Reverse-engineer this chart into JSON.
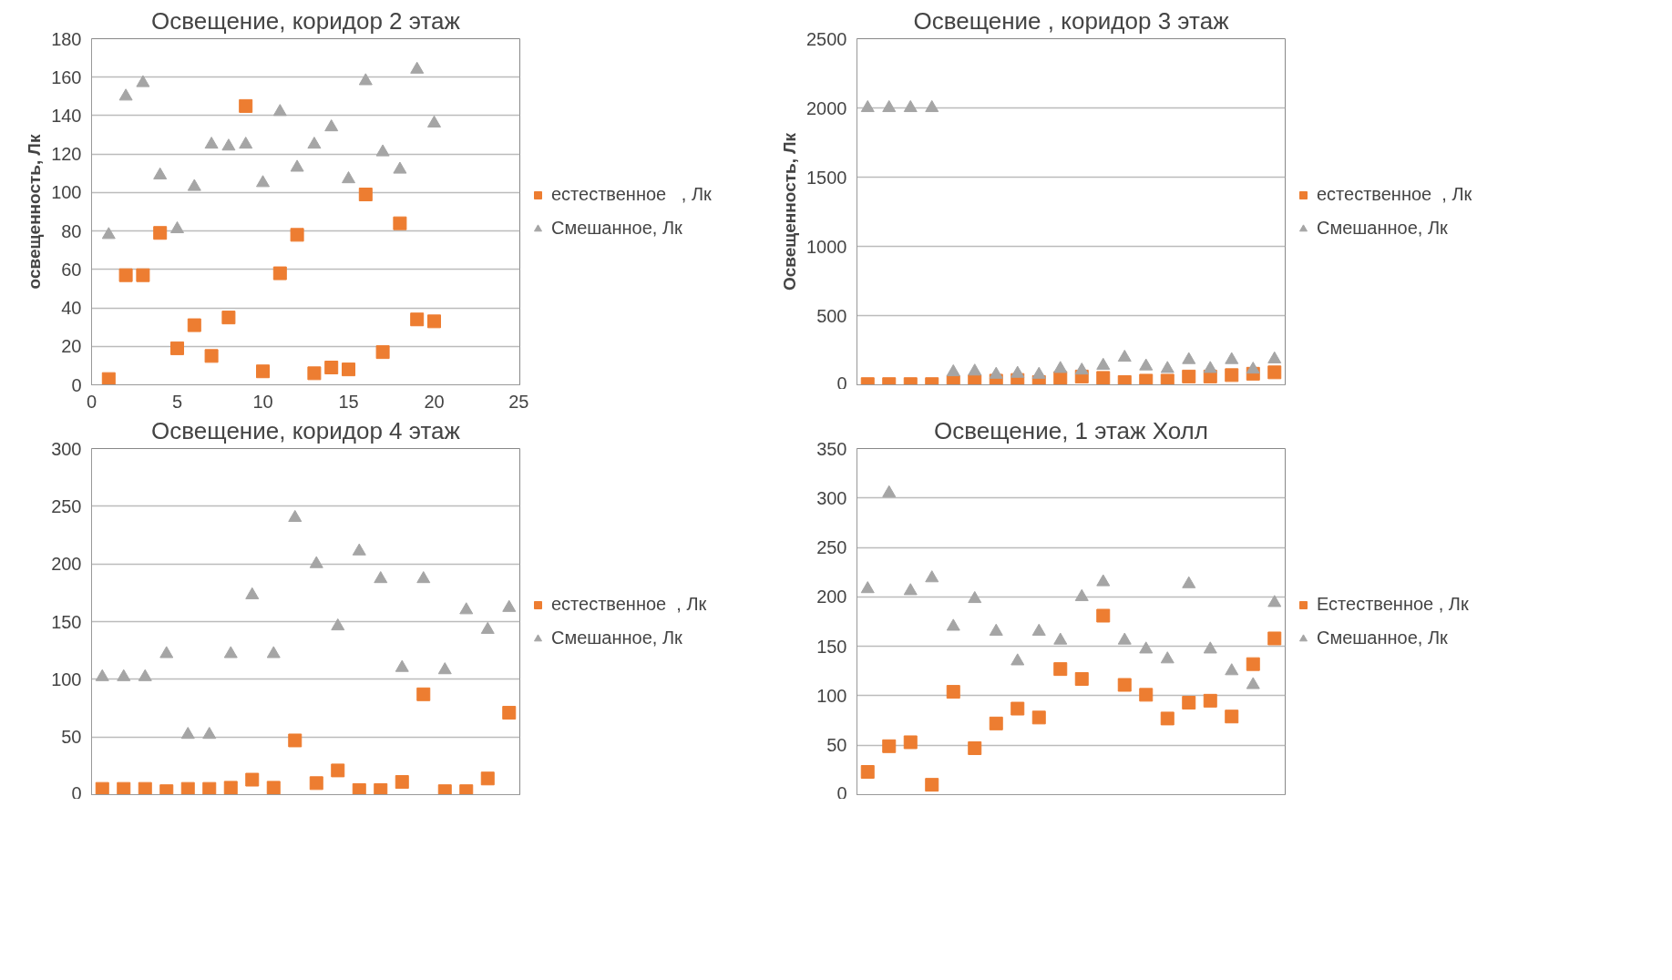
{
  "chart_data": [
    {
      "type": "scatter",
      "title": "Освещение, коридор 2 этаж",
      "ylabel": "освещенность, Лк",
      "x": [
        1,
        2,
        3,
        4,
        5,
        6,
        7,
        8,
        9,
        10,
        11,
        12,
        13,
        14,
        15,
        16,
        17,
        18,
        19,
        20
      ],
      "xlim": [
        0,
        25
      ],
      "xticks": [
        0,
        5,
        10,
        15,
        20,
        25
      ],
      "ylim": [
        0,
        180
      ],
      "yticks": [
        0,
        20,
        40,
        60,
        80,
        100,
        120,
        140,
        160,
        180
      ],
      "grid": "y",
      "legend": "right",
      "series": [
        {
          "name": "естественное   , Лк",
          "color": "#ed7d31",
          "marker": "square",
          "values": [
            3,
            57,
            57,
            79,
            19,
            31,
            15,
            35,
            145,
            7,
            58,
            78,
            6,
            9,
            8,
            99,
            17,
            84,
            34,
            33
          ]
        },
        {
          "name": "Смешанное, Лк",
          "color": "#a5a5a5",
          "marker": "triangle",
          "values": [
            78,
            150,
            157,
            109,
            81,
            103,
            125,
            124,
            125,
            105,
            142,
            113,
            125,
            134,
            107,
            158,
            121,
            112,
            164,
            136
          ]
        }
      ]
    },
    {
      "type": "scatter",
      "title": "Освещение , коридор 3 этаж",
      "ylabel": "Освещенность, Лк",
      "categories": [
        null,
        null,
        null,
        null,
        null,
        null,
        null,
        null,
        null,
        null,
        null,
        null,
        null,
        null,
        null,
        null,
        null,
        null,
        null,
        null
      ],
      "ylim": [
        0,
        2500
      ],
      "yticks": [
        0,
        500,
        1000,
        1500,
        2000,
        2500
      ],
      "grid": "y",
      "legend": "right",
      "tick_labels": "y",
      "series": [
        {
          "name": "естественное  , Лк",
          "color": "#ed7d31",
          "marker": "square",
          "values": [
            5,
            5,
            5,
            5,
            20,
            25,
            30,
            35,
            20,
            50,
            60,
            50,
            20,
            30,
            30,
            60,
            60,
            70,
            80,
            90
          ]
        },
        {
          "name": "Смешанное, Лк",
          "color": "#a5a5a5",
          "marker": "triangle",
          "values": [
            2000,
            2000,
            2000,
            2000,
            92,
            97,
            74,
            81,
            74,
            116,
            104,
            139,
            197,
            134,
            116,
            180,
            116,
            180,
            111,
            185
          ]
        }
      ]
    },
    {
      "type": "scatter",
      "title": "Освещение, коридор 4 этаж",
      "categories": [
        null,
        null,
        null,
        null,
        null,
        null,
        null,
        null,
        null,
        null,
        null,
        null,
        null,
        null,
        null,
        null,
        null,
        null,
        null,
        null
      ],
      "ylim": [
        0,
        300
      ],
      "yticks": [
        0,
        50,
        100,
        150,
        200,
        250,
        300
      ],
      "grid": "y",
      "legend": "right",
      "tick_labels": "y",
      "series": [
        {
          "name": "естественное  , Лк",
          "color": "#ed7d31",
          "marker": "square",
          "values": [
            5,
            5,
            5,
            3,
            5,
            5,
            6,
            13,
            6,
            47,
            10,
            21,
            4,
            4,
            11,
            87,
            3,
            3,
            14,
            71
          ]
        },
        {
          "name": "Смешанное, Лк",
          "color": "#a5a5a5",
          "marker": "triangle",
          "values": [
            102,
            102,
            102,
            122,
            52,
            52,
            122,
            173,
            122,
            240,
            200,
            146,
            211,
            187,
            110,
            187,
            108,
            160,
            143,
            162
          ]
        }
      ]
    },
    {
      "type": "scatter",
      "title": "Освещение, 1 этаж Холл",
      "categories": [
        null,
        null,
        null,
        null,
        null,
        null,
        null,
        null,
        null,
        null,
        null,
        null,
        null,
        null,
        null,
        null,
        null,
        null,
        null,
        null
      ],
      "ylim": [
        0,
        350
      ],
      "yticks": [
        0,
        50,
        100,
        150,
        200,
        250,
        300,
        350
      ],
      "grid": "y",
      "legend": "right",
      "tick_labels": "y",
      "series": [
        {
          "name": "Естественное , Лк",
          "color": "#ed7d31",
          "marker": "square",
          "values": [
            23,
            49,
            53,
            10,
            104,
            47,
            72,
            87,
            78,
            127,
            117,
            181,
            111,
            101,
            77,
            93,
            95,
            79,
            132,
            158
          ]
        },
        {
          "name": "Смешанное, Лк",
          "color": "#a5a5a5",
          "marker": "triangle",
          "values": [
            208,
            305,
            206,
            219,
            170,
            198,
            165,
            135,
            165,
            156,
            200,
            215,
            156,
            147,
            137,
            213,
            147,
            125,
            111,
            194
          ]
        }
      ]
    }
  ]
}
